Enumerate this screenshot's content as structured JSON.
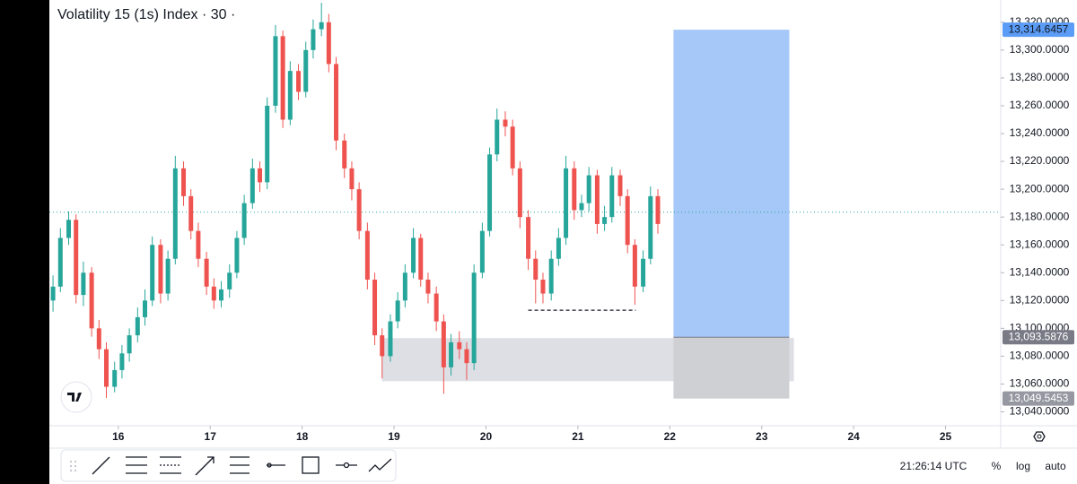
{
  "chart_data": {
    "type": "candlestick",
    "title": "Volatility 15 (1s) Index · 30 ·",
    "x": [
      15.29,
      15.37,
      15.46,
      15.54,
      15.62,
      15.71,
      15.79,
      15.87,
      15.96,
      16.04,
      16.12,
      16.21,
      16.29,
      16.37,
      16.46,
      16.54,
      16.62,
      16.71,
      16.79,
      16.87,
      16.96,
      17.04,
      17.12,
      17.21,
      17.29,
      17.37,
      17.46,
      17.54,
      17.62,
      17.71,
      17.79,
      17.87,
      17.96,
      18.04,
      18.12,
      18.21,
      18.29,
      18.37,
      18.46,
      18.54,
      18.62,
      18.71,
      18.79,
      18.87,
      18.96,
      19.04,
      19.12,
      19.21,
      19.29,
      19.37,
      19.46,
      19.54,
      19.62,
      19.71,
      19.79,
      19.87,
      19.96,
      20.04,
      20.12,
      20.21,
      20.29,
      20.37,
      20.46,
      20.54,
      20.62,
      20.71,
      20.79,
      20.87,
      20.96,
      21.04,
      21.12,
      21.21,
      21.29,
      21.37,
      21.46,
      21.54,
      21.62,
      21.71,
      21.79,
      21.87
    ],
    "open": [
      13120,
      13130,
      13165,
      13178,
      13124,
      13140,
      13100,
      13085,
      13058,
      13070,
      13082,
      13095,
      13108,
      13120,
      13160,
      13125,
      13150,
      13215,
      13195,
      13170,
      13150,
      13130,
      13120,
      13128,
      13140,
      13165,
      13190,
      13215,
      13205,
      13260,
      13310,
      13250,
      13285,
      13270,
      13300,
      13315,
      13320,
      13290,
      13235,
      13215,
      13200,
      13170,
      13135,
      13095,
      13080,
      13105,
      13120,
      13140,
      13165,
      13135,
      13125,
      13105,
      13072,
      13090,
      13085,
      13075,
      13140,
      13170,
      13225,
      13250,
      13245,
      13215,
      13180,
      13150,
      13135,
      13125,
      13150,
      13165,
      13215,
      13185,
      13190,
      13210,
      13175,
      13180,
      13210,
      13195,
      13160,
      13130,
      13150,
      13195
    ],
    "high": [
      13138,
      13172,
      13184,
      13182,
      13148,
      13144,
      13106,
      13090,
      13076,
      13088,
      13100,
      13115,
      13128,
      13166,
      13164,
      13156,
      13224,
      13220,
      13200,
      13176,
      13155,
      13136,
      13134,
      13146,
      13170,
      13196,
      13222,
      13220,
      13266,
      13318,
      13314,
      13292,
      13290,
      13306,
      13322,
      13334,
      13326,
      13295,
      13240,
      13220,
      13205,
      13176,
      13140,
      13100,
      13110,
      13126,
      13146,
      13172,
      13168,
      13140,
      13130,
      13110,
      13096,
      13098,
      13090,
      13146,
      13176,
      13230,
      13258,
      13256,
      13250,
      13220,
      13185,
      13156,
      13140,
      13156,
      13172,
      13224,
      13220,
      13196,
      13216,
      13214,
      13188,
      13216,
      13214,
      13200,
      13164,
      13156,
      13202,
      13200
    ],
    "low": [
      13112,
      13126,
      13160,
      13118,
      13116,
      13094,
      13078,
      13050,
      13054,
      13064,
      13076,
      13090,
      13102,
      13116,
      13118,
      13120,
      13146,
      13188,
      13164,
      13144,
      13124,
      13114,
      13115,
      13122,
      13136,
      13160,
      13186,
      13198,
      13200,
      13255,
      13244,
      13246,
      13264,
      13266,
      13294,
      13310,
      13284,
      13228,
      13208,
      13192,
      13164,
      13128,
      13088,
      13064,
      13076,
      13100,
      13115,
      13136,
      13130,
      13118,
      13098,
      13053,
      13066,
      13078,
      13063,
      13070,
      13136,
      13166,
      13220,
      13238,
      13210,
      13172,
      13142,
      13118,
      13118,
      13120,
      13145,
      13160,
      13178,
      13180,
      13184,
      13168,
      13170,
      13176,
      13188,
      13154,
      13117,
      13126,
      13146,
      13168
    ],
    "close": [
      13130,
      13165,
      13178,
      13124,
      13140,
      13100,
      13085,
      13058,
      13070,
      13082,
      13095,
      13108,
      13120,
      13160,
      13125,
      13150,
      13215,
      13195,
      13170,
      13150,
      13130,
      13120,
      13128,
      13140,
      13165,
      13190,
      13215,
      13205,
      13260,
      13310,
      13250,
      13285,
      13270,
      13300,
      13315,
      13320,
      13290,
      13235,
      13215,
      13200,
      13170,
      13135,
      13095,
      13080,
      13105,
      13120,
      13140,
      13165,
      13135,
      13125,
      13105,
      13072,
      13090,
      13085,
      13075,
      13140,
      13170,
      13225,
      13250,
      13245,
      13215,
      13180,
      13150,
      13135,
      13125,
      13150,
      13165,
      13215,
      13185,
      13190,
      13210,
      13175,
      13180,
      13210,
      13195,
      13160,
      13130,
      13150,
      13195,
      13175
    ],
    "up_color": "#26a69a",
    "down_color": "#ef5350",
    "xlim": [
      15.25,
      25.6
    ],
    "xticks": [
      16,
      17,
      18,
      19,
      20,
      21,
      22,
      23,
      24,
      25
    ],
    "ylim": [
      13030,
      13336
    ],
    "yticks": [
      {
        "value": 13040,
        "label": "13,040.0000"
      },
      {
        "value": 13060,
        "label": "13,060.0000"
      },
      {
        "value": 13080,
        "label": "13,080.0000"
      },
      {
        "value": 13100,
        "label": "13,100.0000"
      },
      {
        "value": 13120,
        "label": "13,120.0000"
      },
      {
        "value": 13140,
        "label": "13,140.0000"
      },
      {
        "value": 13160,
        "label": "13,160.0000"
      },
      {
        "value": 13180,
        "label": "13,180.0000"
      },
      {
        "value": 13200,
        "label": "13,200.0000"
      },
      {
        "value": 13220,
        "label": "13,220.0000"
      },
      {
        "value": 13240,
        "label": "13,240.0000"
      },
      {
        "value": 13260,
        "label": "13,260.0000"
      },
      {
        "value": 13280,
        "label": "13,280.0000"
      },
      {
        "value": 13300,
        "label": "13,300.0000"
      },
      {
        "value": 13320,
        "label": "13,320.0000"
      }
    ],
    "last_price": 13183.5,
    "zone": {
      "x": [
        18.87,
        23.35
      ],
      "y": [
        13062,
        13093
      ],
      "color": "#d1d4dc"
    },
    "level": {
      "x": [
        20.46,
        21.63
      ],
      "y": 13113
    },
    "long_position": {
      "x": [
        22.04,
        23.3
      ],
      "target": 13314.6457,
      "entry": 13093.5876,
      "stop": 13049.5453,
      "profit_color": "#a5c8f8",
      "loss_color": "#cfd0d4"
    },
    "price_labels": [
      {
        "value": 13314.6457,
        "label": "13,314.6457",
        "color": "#5b9cf6"
      },
      {
        "value": 13093.5876,
        "label": "13,093.5876",
        "color": "#787b86"
      },
      {
        "value": 13049.5453,
        "label": "13,049.5453",
        "color": "#9598a1"
      }
    ]
  },
  "toolbar": {
    "time": "21:26:14 UTC",
    "percent": "%",
    "log": "log",
    "auto": "auto"
  }
}
